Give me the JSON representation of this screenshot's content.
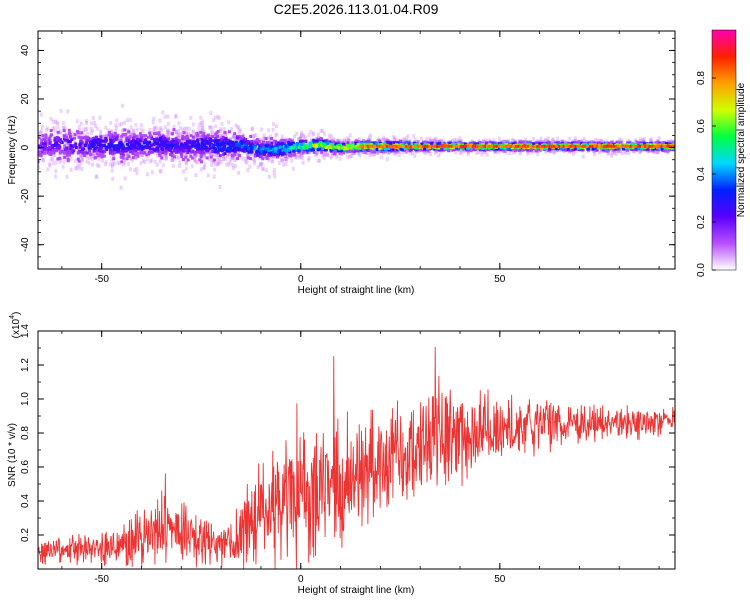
{
  "title": "C2E5.2026.113.01.04.R09",
  "chart_data": [
    {
      "type": "heatmap",
      "xlabel": "Height of straight line (km)",
      "ylabel": "Frequency (Hz)",
      "xlim": [
        -66,
        94
      ],
      "ylim": [
        -50,
        48
      ],
      "xticks": [
        -50,
        0,
        50
      ],
      "xtick_labels": [
        "-50",
        "0",
        "50"
      ],
      "yticks": [
        -40,
        -20,
        0,
        20,
        40
      ],
      "ytick_labels": [
        "-40",
        "-20",
        "0",
        "20",
        "40"
      ],
      "grid": false,
      "colorbar": {
        "label": "Normalized spectral amplitude",
        "range": [
          0,
          1
        ],
        "ticks": [
          0.0,
          0.2,
          0.4,
          0.6,
          0.8
        ],
        "tick_labels": [
          "0.0",
          "0.2",
          "0.4",
          "0.6",
          "0.8"
        ],
        "colors": [
          "#ffffff",
          "#b94fff",
          "#5a00ff",
          "#0020ff",
          "#00d8ff",
          "#00ff40",
          "#d0ff00",
          "#ffa000",
          "#ff2000",
          "#ff00b0"
        ]
      },
      "ridge": {
        "height": [
          -65,
          -60,
          -55,
          -50,
          -45,
          -40,
          -35,
          -30,
          -25,
          -20,
          -15,
          -10,
          -5,
          0,
          5,
          10,
          15,
          20,
          30,
          40,
          50,
          60,
          70,
          80,
          93
        ],
        "frequency": [
          0.5,
          1.5,
          0.5,
          1.5,
          0.5,
          1.0,
          1.5,
          0.5,
          1.5,
          0.5,
          1.0,
          -1.0,
          -0.5,
          0.5,
          1.0,
          0.0,
          0.5,
          0.5,
          0.5,
          0.5,
          0.5,
          0.5,
          0.5,
          0.5,
          0.5
        ],
        "amplitude": [
          0.2,
          0.25,
          0.25,
          0.3,
          0.3,
          0.3,
          0.3,
          0.25,
          0.3,
          0.35,
          0.35,
          0.4,
          0.45,
          0.55,
          0.65,
          0.7,
          0.8,
          0.85,
          0.85,
          0.85,
          0.85,
          0.85,
          0.85,
          0.85,
          0.85
        ],
        "spread": [
          6,
          6,
          6,
          6,
          6,
          5,
          6,
          6,
          6,
          6,
          5,
          4,
          4,
          3,
          3,
          2,
          2,
          2,
          1.5,
          1.5,
          1.5,
          1.5,
          1.5,
          1.5,
          1.5
        ]
      }
    },
    {
      "type": "line",
      "xlabel": "Height of straight line (km)",
      "ylabel": "SNR (10 * v/v)",
      "y_multiplier_label": "(x10",
      "y_multiplier_exponent": "4",
      "xlim": [
        -66,
        94
      ],
      "ylim": [
        0,
        1.4
      ],
      "xticks": [
        -50,
        0,
        50
      ],
      "xtick_labels": [
        "-50",
        "0",
        "50"
      ],
      "yticks": [
        0.2,
        0.4,
        0.6,
        0.8,
        1.0,
        1.2,
        1.4
      ],
      "ytick_labels": [
        "0.2",
        "0.4",
        "0.6",
        "0.8",
        "1.0",
        "1.2",
        "1.4"
      ],
      "grid": false,
      "series": [
        {
          "color": "#ee3333",
          "envelope_x": [
            -66,
            -60,
            -55,
            -50,
            -45,
            -40,
            -35,
            -30,
            -25,
            -20,
            -15,
            -10,
            -5,
            0,
            5,
            10,
            15,
            20,
            25,
            30,
            35,
            40,
            45,
            50,
            55,
            60,
            65,
            70,
            75,
            80,
            85,
            90,
            94
          ],
          "envelope_mean": [
            0.1,
            0.11,
            0.12,
            0.12,
            0.14,
            0.18,
            0.24,
            0.22,
            0.16,
            0.15,
            0.2,
            0.33,
            0.36,
            0.4,
            0.45,
            0.5,
            0.55,
            0.62,
            0.68,
            0.74,
            0.78,
            0.8,
            0.8,
            0.82,
            0.84,
            0.84,
            0.85,
            0.86,
            0.86,
            0.86,
            0.86,
            0.87,
            0.88
          ],
          "envelope_amp": [
            0.08,
            0.08,
            0.09,
            0.1,
            0.12,
            0.16,
            0.22,
            0.18,
            0.14,
            0.12,
            0.22,
            0.34,
            0.38,
            0.4,
            0.4,
            0.38,
            0.34,
            0.3,
            0.3,
            0.32,
            0.34,
            0.32,
            0.26,
            0.22,
            0.18,
            0.16,
            0.12,
            0.12,
            0.12,
            0.1,
            0.09,
            0.08,
            0.08
          ]
        }
      ]
    }
  ]
}
